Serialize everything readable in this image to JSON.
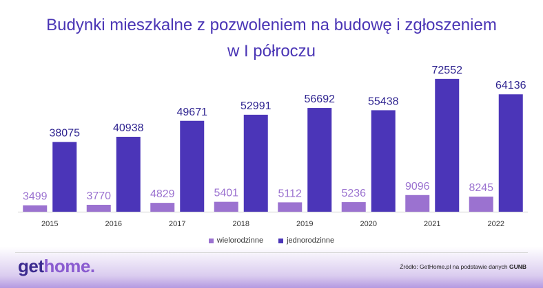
{
  "title": "Budynki mieszkalne z pozwoleniem na budowę i zgłoszeniem w I półroczu",
  "colors": {
    "title": "#4a35b5",
    "wielorodzinne": "#9b72d0",
    "jednorodzinne": "#4b35b8",
    "label_wielo": "#9b72d0",
    "label_jedno": "#2f2490"
  },
  "chart_data": {
    "type": "bar",
    "categories": [
      "2015",
      "2016",
      "2017",
      "2018",
      "2019",
      "2020",
      "2021",
      "2022"
    ],
    "series": [
      {
        "name": "wielorodzinne",
        "values": [
          3499,
          3770,
          4829,
          5401,
          5112,
          5236,
          9096,
          8245
        ]
      },
      {
        "name": "jednorodzinne",
        "values": [
          38075,
          40938,
          49671,
          52991,
          56692,
          55438,
          72552,
          64136
        ]
      }
    ],
    "xlabel": "",
    "ylabel": "",
    "ylim": [
      0,
      80000
    ],
    "grid": false,
    "legend_position": "bottom"
  },
  "legend": {
    "wielo_label": "wielorodzinne",
    "jedno_label": "jednorodzinne"
  },
  "logo": {
    "part1": "get",
    "part2": "home."
  },
  "source": {
    "text": "Źródło: GetHome.pl na podstawie danych ",
    "bold": "GUNB"
  }
}
